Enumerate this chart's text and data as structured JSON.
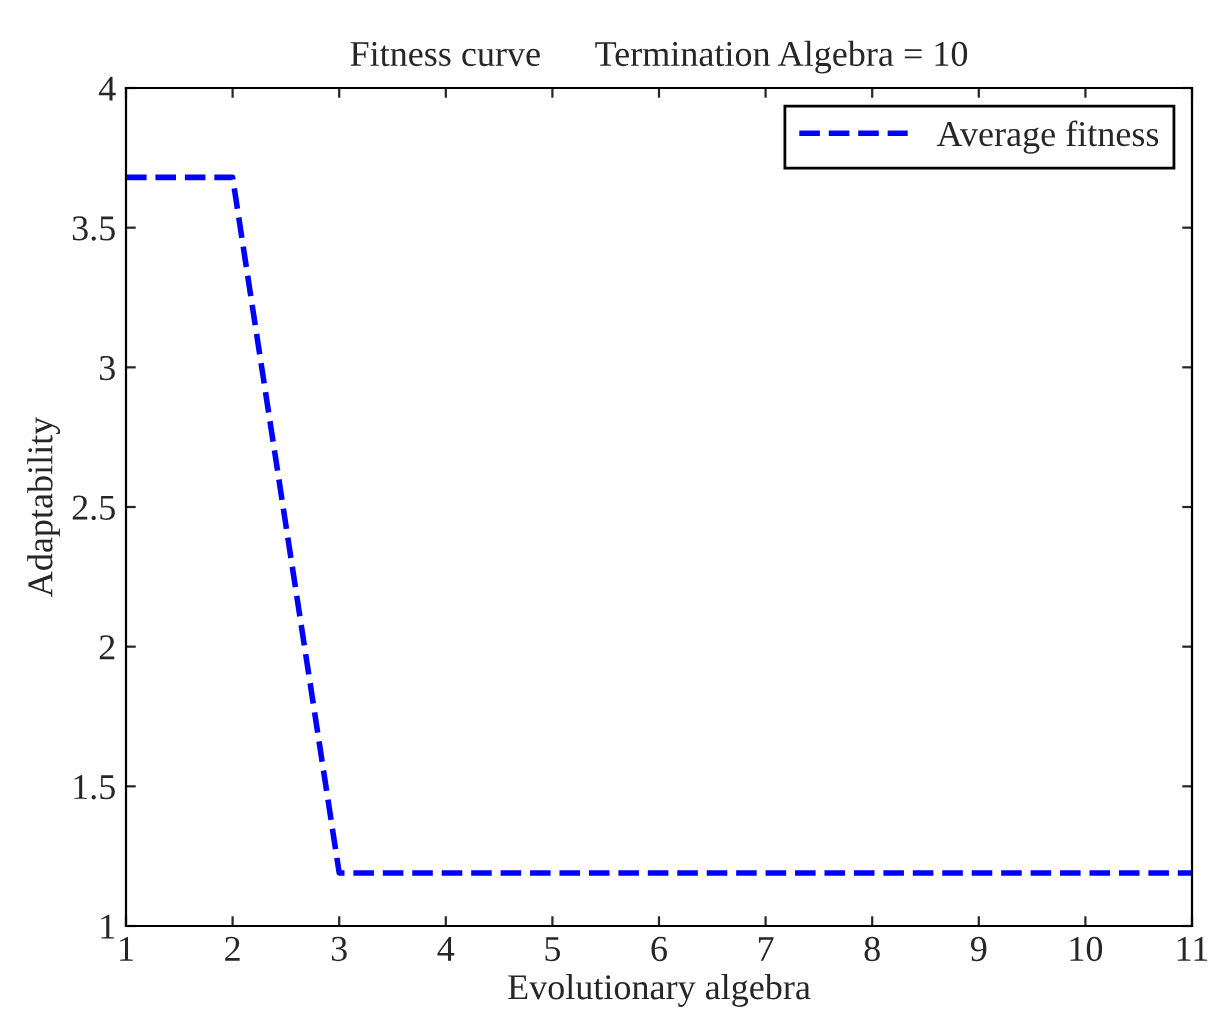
{
  "chart_data": {
    "type": "line",
    "title": "Fitness curve      Termination Algebra = 10",
    "xlabel": "Evolutionary algebra",
    "ylabel": "Adaptability",
    "x": [
      1,
      2,
      3,
      4,
      5,
      6,
      7,
      8,
      9,
      10,
      11
    ],
    "series": [
      {
        "name": "Average fitness",
        "color": "#0000ff",
        "values": [
          3.68,
          3.68,
          1.19,
          1.19,
          1.19,
          1.19,
          1.19,
          1.19,
          1.19,
          1.19,
          1.19
        ]
      }
    ],
    "xlim": [
      1,
      11
    ],
    "xticks": [
      1,
      2,
      3,
      4,
      5,
      6,
      7,
      8,
      9,
      10,
      11
    ],
    "ylim": [
      1,
      4
    ],
    "yticks": [
      1,
      1.5,
      2,
      2.5,
      3,
      3.5,
      4
    ],
    "grid": false,
    "legend": "top right",
    "line_style": "dashed",
    "marker": "none"
  }
}
